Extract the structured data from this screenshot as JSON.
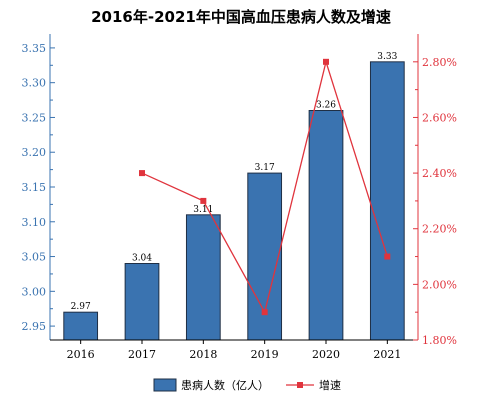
{
  "chart_data": {
    "type": "bar",
    "title": "2016年-2021年中国高血压患病人数及增速",
    "categories": [
      "2016",
      "2017",
      "2018",
      "2019",
      "2020",
      "2021"
    ],
    "series": [
      {
        "name": "患病人数（亿人）",
        "type": "bar",
        "axis": "left",
        "values": [
          2.97,
          3.04,
          3.11,
          3.17,
          3.26,
          3.33
        ],
        "labels": [
          "2.97",
          "3.04",
          "3.11",
          "3.17",
          "3.26",
          "3.33"
        ],
        "color": "#3a73b0"
      },
      {
        "name": "增速",
        "type": "line",
        "axis": "right",
        "values": [
          null,
          2.4,
          2.3,
          1.9,
          2.8,
          2.1
        ],
        "color": "#e0343d"
      }
    ],
    "y_left": {
      "lim": [
        2.93,
        3.37
      ],
      "ticks": [
        "2.95",
        "3.00",
        "3.05",
        "3.10",
        "3.15",
        "3.20",
        "3.25",
        "3.30",
        "3.35"
      ],
      "color": "#3a73b0"
    },
    "y_right": {
      "lim": [
        1.8,
        2.9
      ],
      "ticks": [
        "1.80%",
        "2.00%",
        "2.20%",
        "2.40%",
        "2.60%",
        "2.80%"
      ],
      "color": "#e0343d"
    },
    "grid": false,
    "legend": "bottom"
  }
}
